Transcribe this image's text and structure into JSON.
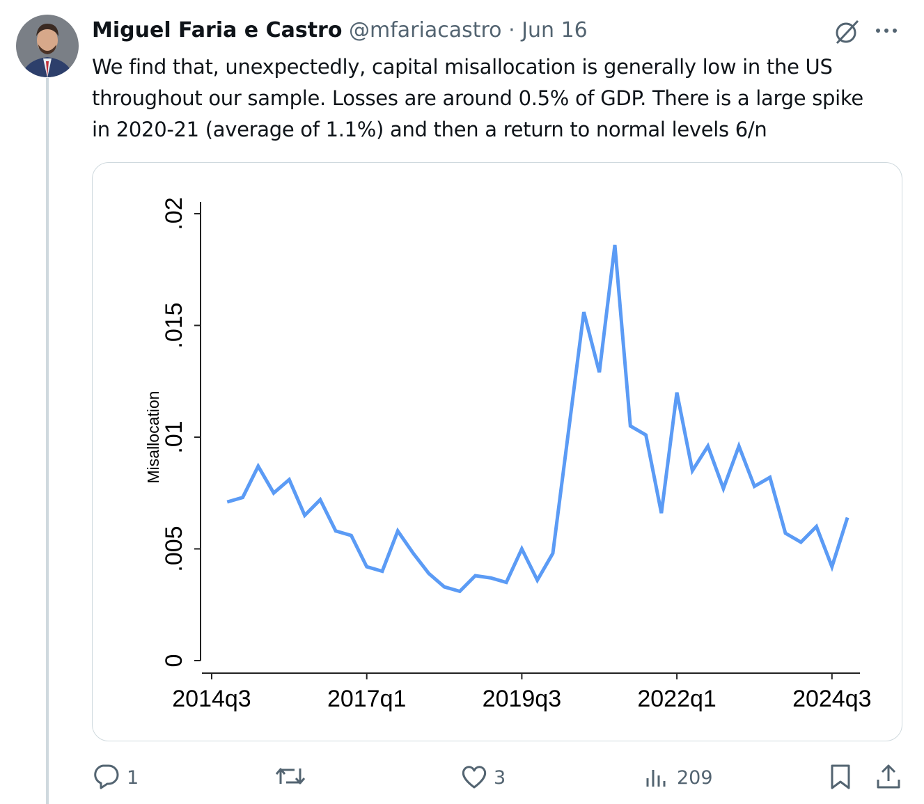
{
  "tweet": {
    "author_name": "Miguel Faria e Castro",
    "handle": "@mfariacastro",
    "separator": "·",
    "date": "Jun 16",
    "text_lines": [
      "We find that, unexpectedly, capital misallocation is generally low in the US",
      "throughout our sample. Losses are around 0.5% of GDP. There is a large spike",
      "in 2020-21 (average of 1.1%) and then a return to normal levels 6/n"
    ],
    "replies": "1",
    "likes": "3",
    "views": "209"
  },
  "chart_data": {
    "type": "line",
    "ylabel": "Misallocation",
    "categories": [
      "2014q3",
      null,
      null,
      null,
      null,
      null,
      null,
      null,
      null,
      null,
      "2017q1",
      null,
      null,
      null,
      null,
      null,
      null,
      null,
      null,
      null,
      "2019q3",
      null,
      null,
      null,
      null,
      null,
      null,
      null,
      null,
      null,
      "2022q1",
      null,
      null,
      null,
      null,
      null,
      null,
      null,
      null,
      null,
      "2024q3",
      null
    ],
    "series": [
      {
        "name": "Misallocation",
        "color": "#5b9bf5",
        "values": [
          null,
          0.0071,
          0.0073,
          0.0087,
          0.0075,
          0.0081,
          0.0065,
          0.0072,
          0.0058,
          0.0056,
          0.0042,
          0.004,
          0.0058,
          0.0048,
          0.0039,
          0.0033,
          0.0031,
          0.0038,
          0.0037,
          0.0035,
          0.005,
          0.0036,
          0.0048,
          0.0102,
          0.0156,
          0.0129,
          0.0186,
          0.0105,
          0.0101,
          0.0066,
          0.012,
          0.0085,
          0.0096,
          0.0077,
          0.0096,
          0.0078,
          0.0082,
          0.0057,
          0.0053,
          0.006,
          0.0042,
          0.0064
        ]
      }
    ],
    "ylim": [
      0,
      0.02
    ],
    "yticks": [
      0,
      {
        "value": 0.005,
        "label": ".005"
      },
      {
        "value": 0.01,
        "label": ".01"
      },
      {
        "value": 0.015,
        "label": ".015"
      },
      {
        "value": 0.02,
        "label": ".02"
      }
    ]
  }
}
